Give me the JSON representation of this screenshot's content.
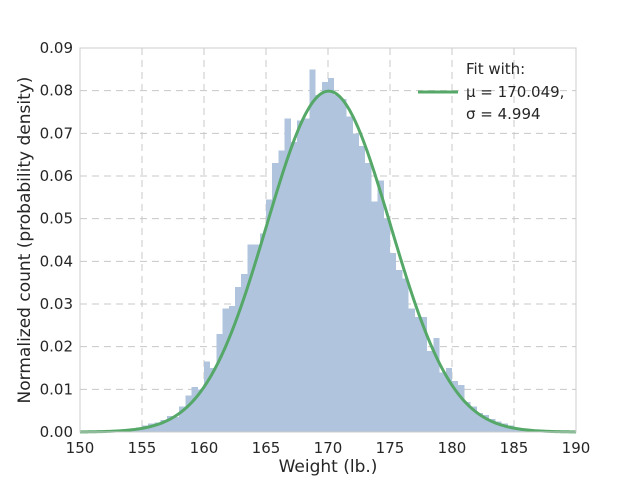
{
  "chart_data": {
    "type": "bar",
    "xlabel": "Weight (lb.)",
    "ylabel": "Normalized count (probability density)",
    "xlim": [
      150,
      190
    ],
    "ylim": [
      0,
      0.09
    ],
    "xticks": [
      "150",
      "155",
      "160",
      "165",
      "170",
      "175",
      "180",
      "185",
      "190"
    ],
    "yticks": [
      "0.00",
      "0.01",
      "0.02",
      "0.03",
      "0.04",
      "0.05",
      "0.06",
      "0.07",
      "0.08",
      "0.09"
    ],
    "grid": true,
    "histogram": {
      "bin_edges": [
        153.5,
        154.0,
        154.5,
        155.0,
        155.5,
        156.0,
        156.5,
        157.0,
        157.5,
        158.0,
        158.5,
        159.0,
        159.5,
        160.0,
        160.5,
        161.0,
        161.5,
        162.0,
        162.5,
        163.0,
        163.5,
        164.0,
        164.5,
        165.0,
        165.5,
        166.0,
        166.5,
        167.0,
        167.5,
        168.0,
        168.5,
        169.0,
        169.5,
        170.0,
        170.5,
        171.0,
        171.5,
        172.0,
        172.5,
        173.0,
        173.5,
        174.0,
        174.5,
        175.0,
        175.5,
        176.0,
        176.5,
        177.0,
        177.5,
        178.0,
        178.5,
        179.0,
        179.5,
        180.0,
        180.5,
        181.0,
        181.5,
        182.0,
        182.5,
        183.0,
        183.5,
        184.0,
        184.5,
        185.0,
        185.5,
        186.0
      ],
      "densities": [
        0.0005,
        0.0007,
        0.001,
        0.0015,
        0.002,
        0.0022,
        0.0028,
        0.0038,
        0.0035,
        0.006,
        0.0085,
        0.0105,
        0.01,
        0.0165,
        0.015,
        0.023,
        0.029,
        0.0295,
        0.034,
        0.037,
        0.044,
        0.044,
        0.0465,
        0.0545,
        0.063,
        0.066,
        0.0735,
        0.068,
        0.073,
        0.0735,
        0.085,
        0.079,
        0.082,
        0.083,
        0.079,
        0.078,
        0.074,
        0.07,
        0.067,
        0.063,
        0.054,
        0.059,
        0.05,
        0.042,
        0.038,
        0.036,
        0.029,
        0.027,
        0.027,
        0.019,
        0.022,
        0.014,
        0.015,
        0.012,
        0.011,
        0.007,
        0.006,
        0.0045,
        0.004,
        0.003,
        0.0025,
        0.002,
        0.0015,
        0.001,
        0.0007
      ],
      "color": "#b0c4de"
    },
    "fit": {
      "mu": 170.049,
      "sigma": 4.994,
      "color": "#55a868"
    },
    "legend": {
      "placement": "top-right",
      "lines": [
        "Fit with:",
        "μ = 170.049,",
        "σ =  4.994"
      ]
    }
  }
}
